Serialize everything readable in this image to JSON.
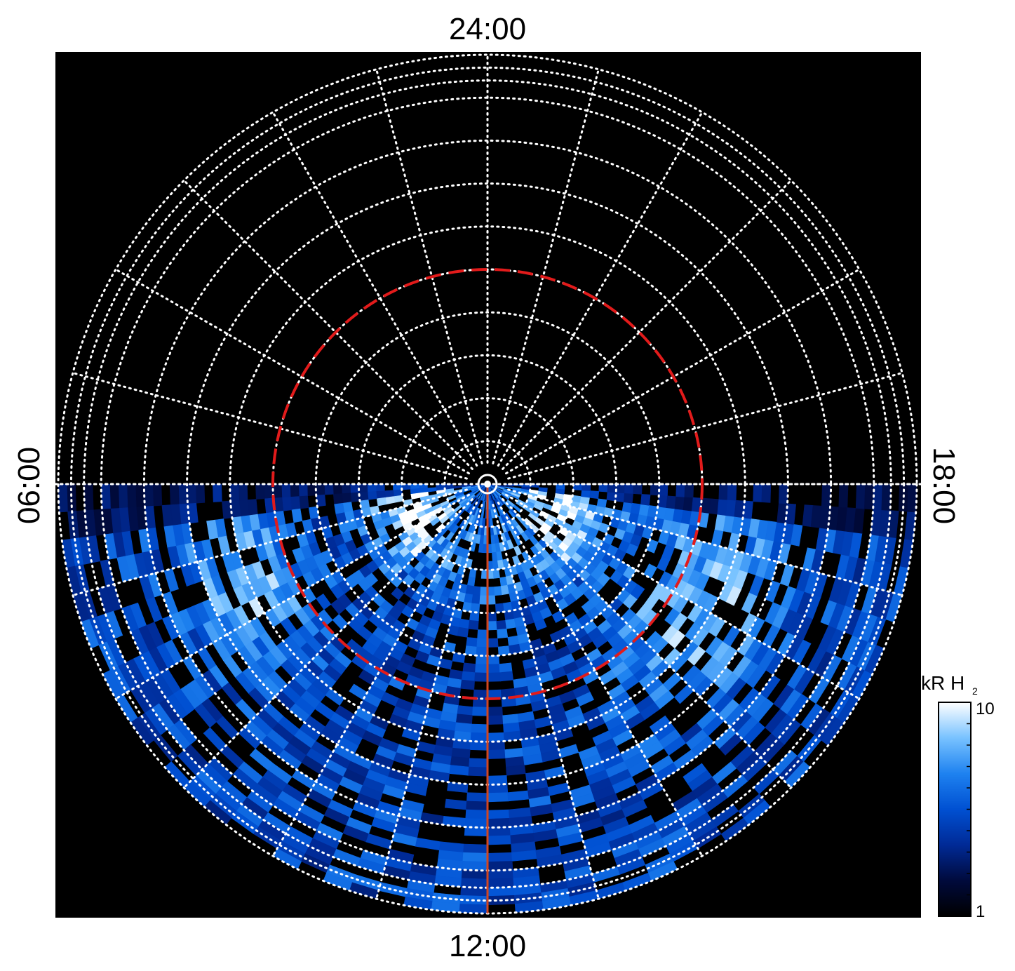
{
  "chart_data": {
    "type": "heatmap",
    "projection": "polar, local time around pole",
    "local_time_labels": {
      "top": "24:00",
      "bottom": "12:00",
      "left": "06:00",
      "right": "18:00"
    },
    "colorbar": {
      "title": "kR H",
      "title_subscript": "2",
      "min_label": "1",
      "max_label": "10",
      "scale": "log",
      "range": [
        1,
        10
      ],
      "colors": [
        "#000000",
        "#000a3c",
        "#002a96",
        "#0050d2",
        "#1e82f0",
        "#78c2ff",
        "#ffffff"
      ]
    },
    "colatitude_grid_deg": [
      5,
      10,
      15,
      20,
      25,
      30,
      35,
      40,
      45
    ],
    "local_time_meridians_hours": [
      0,
      1,
      2,
      3,
      4,
      5,
      6,
      7,
      8,
      9,
      10,
      11,
      12,
      13,
      14,
      15,
      16,
      17,
      18,
      19,
      20,
      21,
      22,
      23
    ],
    "reference_circle_colatitude_deg": 25,
    "highlight_meridian_hour": 12,
    "grid": true,
    "colors": {
      "background": "#000000",
      "grid": "#ffffff",
      "reference_circle": "#e21b1b",
      "meridian_line": "#d2451e"
    }
  }
}
